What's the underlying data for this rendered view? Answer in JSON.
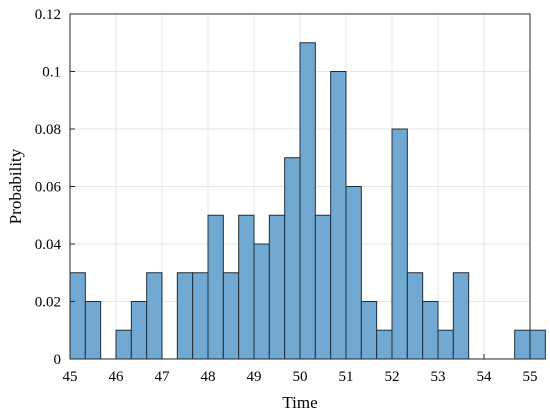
{
  "chart_data": {
    "type": "bar",
    "title": "",
    "xlabel": "Time",
    "ylabel": "Probability",
    "xlim": [
      45,
      55
    ],
    "ylim": [
      0,
      0.12
    ],
    "x_ticks": [
      45,
      46,
      47,
      48,
      49,
      50,
      51,
      52,
      53,
      54,
      55
    ],
    "x_tick_labels": [
      "45",
      "46",
      "47",
      "48",
      "49",
      "50",
      "51",
      "52",
      "53",
      "54",
      "55"
    ],
    "y_ticks": [
      0,
      0.02,
      0.04,
      0.06,
      0.08,
      0.1,
      0.12
    ],
    "y_tick_labels": [
      "0",
      "0.02",
      "0.04",
      "0.06",
      "0.08",
      "0.1",
      "0.12"
    ],
    "grid": true,
    "bin_width": 0.3333,
    "bins": [
      {
        "x_start": 45.0,
        "x_end": 45.3333,
        "value": 0.03
      },
      {
        "x_start": 45.3333,
        "x_end": 45.6667,
        "value": 0.02
      },
      {
        "x_start": 46.0,
        "x_end": 46.3333,
        "value": 0.01
      },
      {
        "x_start": 46.3333,
        "x_end": 46.6667,
        "value": 0.02
      },
      {
        "x_start": 46.6667,
        "x_end": 47.0,
        "value": 0.03
      },
      {
        "x_start": 47.3333,
        "x_end": 47.6667,
        "value": 0.03
      },
      {
        "x_start": 47.6667,
        "x_end": 48.0,
        "value": 0.03
      },
      {
        "x_start": 48.0,
        "x_end": 48.3333,
        "value": 0.05
      },
      {
        "x_start": 48.3333,
        "x_end": 48.6667,
        "value": 0.03
      },
      {
        "x_start": 48.6667,
        "x_end": 49.0,
        "value": 0.05
      },
      {
        "x_start": 49.0,
        "x_end": 49.3333,
        "value": 0.04
      },
      {
        "x_start": 49.3333,
        "x_end": 49.6667,
        "value": 0.05
      },
      {
        "x_start": 49.6667,
        "x_end": 50.0,
        "value": 0.07
      },
      {
        "x_start": 50.0,
        "x_end": 50.3333,
        "value": 0.11
      },
      {
        "x_start": 50.3333,
        "x_end": 50.6667,
        "value": 0.05
      },
      {
        "x_start": 50.6667,
        "x_end": 51.0,
        "value": 0.1
      },
      {
        "x_start": 51.0,
        "x_end": 51.3333,
        "value": 0.06
      },
      {
        "x_start": 51.3333,
        "x_end": 51.6667,
        "value": 0.02
      },
      {
        "x_start": 51.6667,
        "x_end": 52.0,
        "value": 0.01
      },
      {
        "x_start": 52.0,
        "x_end": 52.3333,
        "value": 0.08
      },
      {
        "x_start": 52.3333,
        "x_end": 52.6667,
        "value": 0.03
      },
      {
        "x_start": 52.6667,
        "x_end": 53.0,
        "value": 0.02
      },
      {
        "x_start": 53.0,
        "x_end": 53.3333,
        "value": 0.01
      },
      {
        "x_start": 53.3333,
        "x_end": 53.6667,
        "value": 0.03
      },
      {
        "x_start": 54.6667,
        "x_end": 55.0,
        "value": 0.01
      },
      {
        "x_start": 55.0,
        "x_end": 55.3333,
        "value": 0.01
      }
    ],
    "colors": {
      "bar_fill": "#72A9D3",
      "bar_stroke": "#1F2D3A",
      "grid": "#E6E6E6",
      "axis": "#262626"
    }
  }
}
